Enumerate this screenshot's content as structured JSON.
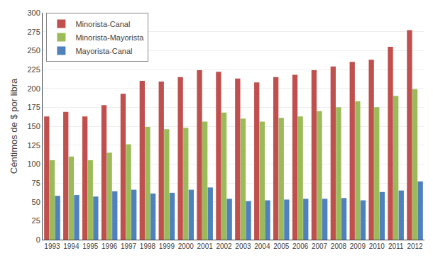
{
  "chart_data": {
    "type": "bar",
    "categories": [
      "1993",
      "1994",
      "1995",
      "1996",
      "1997",
      "1998",
      "1999",
      "2000",
      "2001",
      "2002",
      "2003",
      "2004",
      "2005",
      "2006",
      "2007",
      "2008",
      "2009",
      "2010",
      "2011",
      "2012"
    ],
    "series": [
      {
        "name": "Minorista-Canal",
        "color": "#C0504D",
        "values": [
          163,
          169,
          163,
          178,
          193,
          210,
          209,
          215,
          224,
          222,
          213,
          208,
          215,
          218,
          224,
          229,
          235,
          238,
          255,
          277
        ]
      },
      {
        "name": "Minorista-Mayorista",
        "color": "#9BBB59",
        "values": [
          105,
          110,
          105,
          115,
          126,
          149,
          146,
          148,
          156,
          168,
          160,
          156,
          161,
          163,
          170,
          175,
          183,
          175,
          190,
          199
        ]
      },
      {
        "name": "Mayorista-Canal",
        "color": "#4F81BD",
        "values": [
          58,
          59,
          57,
          64,
          66,
          61,
          62,
          66,
          69,
          54,
          51,
          52,
          53,
          54,
          54,
          55,
          52,
          63,
          65,
          77
        ]
      }
    ],
    "ylabel": "Céntimos de $ por libra",
    "ylim": [
      0,
      300
    ],
    "yticks": [
      0,
      25,
      50,
      75,
      100,
      125,
      150,
      175,
      200,
      225,
      250,
      275,
      300
    ],
    "grid": true,
    "legend": "upper left"
  }
}
